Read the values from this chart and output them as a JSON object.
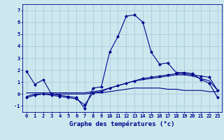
{
  "background_color": "#cce8ee",
  "grid_color": "#aaccdd",
  "line_color": "#00008b",
  "xlabel": "Graphe des températures (°c)",
  "xlim": [
    -0.5,
    23.5
  ],
  "ylim": [
    -1.5,
    7.5
  ],
  "yticks": [
    -1,
    0,
    1,
    2,
    3,
    4,
    5,
    6,
    7
  ],
  "xticks": [
    0,
    1,
    2,
    3,
    4,
    5,
    6,
    7,
    8,
    9,
    10,
    11,
    12,
    13,
    14,
    15,
    16,
    17,
    18,
    19,
    20,
    21,
    22,
    23
  ],
  "line1_x": [
    0,
    1,
    2,
    3,
    4,
    5,
    6,
    7,
    8,
    9,
    10,
    11,
    12,
    13,
    14,
    15,
    16,
    17,
    18,
    19,
    20,
    21,
    22,
    23
  ],
  "line1_y": [
    1.9,
    0.8,
    1.2,
    0.0,
    -0.1,
    -0.2,
    -0.3,
    -1.2,
    0.5,
    0.6,
    3.5,
    4.8,
    6.5,
    6.6,
    6.0,
    3.5,
    2.5,
    2.6,
    1.8,
    1.8,
    1.7,
    1.2,
    0.9,
    -0.3
  ],
  "line2_x": [
    0,
    1,
    2,
    3,
    4,
    5,
    6,
    7,
    8,
    9,
    10,
    11,
    12,
    13,
    14,
    15,
    16,
    17,
    18,
    19,
    20,
    21,
    22,
    23
  ],
  "line2_y": [
    -0.3,
    -0.1,
    0.0,
    -0.1,
    -0.2,
    -0.3,
    -0.4,
    -0.9,
    0.1,
    0.2,
    0.5,
    0.7,
    0.9,
    1.1,
    1.3,
    1.4,
    1.5,
    1.6,
    1.7,
    1.7,
    1.6,
    1.5,
    1.4,
    0.3
  ],
  "line3_x": [
    0,
    1,
    2,
    3,
    4,
    5,
    6,
    7,
    8,
    9,
    10,
    11,
    12,
    13,
    14,
    15,
    16,
    17,
    18,
    19,
    20,
    21,
    22,
    23
  ],
  "line3_y": [
    -0.2,
    0.0,
    0.0,
    0.0,
    0.0,
    0.0,
    0.0,
    0.0,
    0.1,
    0.1,
    0.2,
    0.3,
    0.4,
    0.5,
    0.5,
    0.5,
    0.5,
    0.4,
    0.4,
    0.3,
    0.3,
    0.3,
    0.2,
    0.2
  ],
  "line4_x": [
    0,
    1,
    2,
    3,
    4,
    5,
    6,
    7,
    8,
    9,
    10,
    11,
    12,
    13,
    14,
    15,
    16,
    17,
    18,
    19,
    20,
    21,
    22,
    23
  ],
  "line4_y": [
    0.1,
    0.1,
    0.1,
    0.1,
    0.1,
    0.1,
    0.1,
    0.1,
    0.2,
    0.3,
    0.5,
    0.7,
    0.9,
    1.1,
    1.2,
    1.3,
    1.4,
    1.5,
    1.6,
    1.6,
    1.5,
    1.3,
    1.1,
    0.3
  ],
  "marker_size": 2.5,
  "line_width": 0.8,
  "tick_fontsize": 5.0,
  "xlabel_fontsize": 6.5
}
